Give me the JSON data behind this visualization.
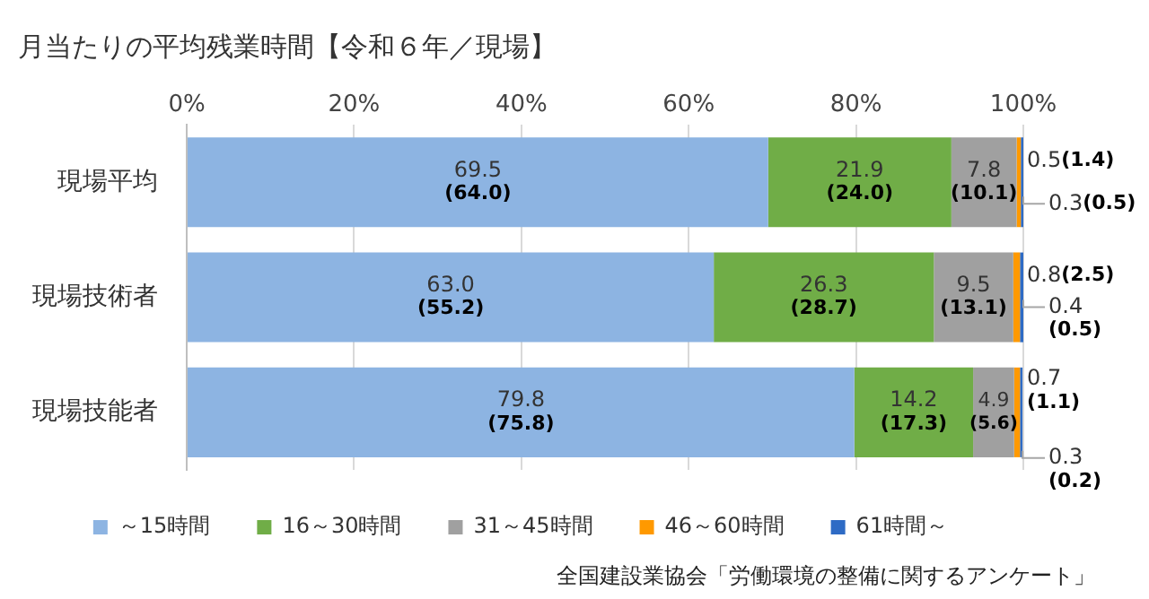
{
  "chart_data": {
    "type": "bar",
    "orientation": "horizontal",
    "stacked": true,
    "title": "月当たりの平均残業時間【令和６年／現場】",
    "categories": [
      "現場平均",
      "現場技術者",
      "現場技能者"
    ],
    "series": [
      {
        "name": "～15時間",
        "color": "#8db4e2",
        "values": [
          69.5,
          63.0,
          79.8
        ],
        "value_labels": [
          "69.5\n(64.0)",
          "63.0\n(55.2)",
          "79.8\n(75.8)"
        ]
      },
      {
        "name": "16～30時間",
        "color": "#70ad47",
        "values": [
          21.9,
          26.3,
          14.2
        ],
        "value_labels": [
          "21.9\n(24.0)",
          "26.3\n(28.7)",
          "14.2\n(17.3)"
        ]
      },
      {
        "name": "31～45時間",
        "color": "#a0a0a0",
        "values": [
          7.8,
          9.5,
          4.9
        ],
        "value_labels": [
          "7.8\n(10.1)",
          "9.5\n(13.1)",
          "4.9\n(5.6)"
        ]
      },
      {
        "name": "46～60時間",
        "color": "#ff9900",
        "values": [
          0.5,
          0.8,
          0.7
        ],
        "value_labels": [
          "0.5(1.4)",
          "0.8(2.5)",
          "0.7\n(1.1)"
        ]
      },
      {
        "name": "61時間～",
        "color": "#2e6bc5",
        "values": [
          0.3,
          0.4,
          0.3
        ],
        "value_labels": [
          "0.3(0.5)",
          "0.4\n(0.5)",
          "0.3\n(0.2)"
        ]
      }
    ],
    "xlim": [
      0,
      100
    ],
    "xticks": [
      {
        "value": 0,
        "label": "0%"
      },
      {
        "value": 20,
        "label": "20%"
      },
      {
        "value": 40,
        "label": "40%"
      },
      {
        "value": 60,
        "label": "60%"
      },
      {
        "value": 80,
        "label": "80%"
      },
      {
        "value": 100,
        "label": "100%"
      }
    ],
    "grid": "x",
    "legend": "bottom",
    "annotations": [
      "全国建設業協会「労働環境の整備に関するアンケート」"
    ]
  }
}
